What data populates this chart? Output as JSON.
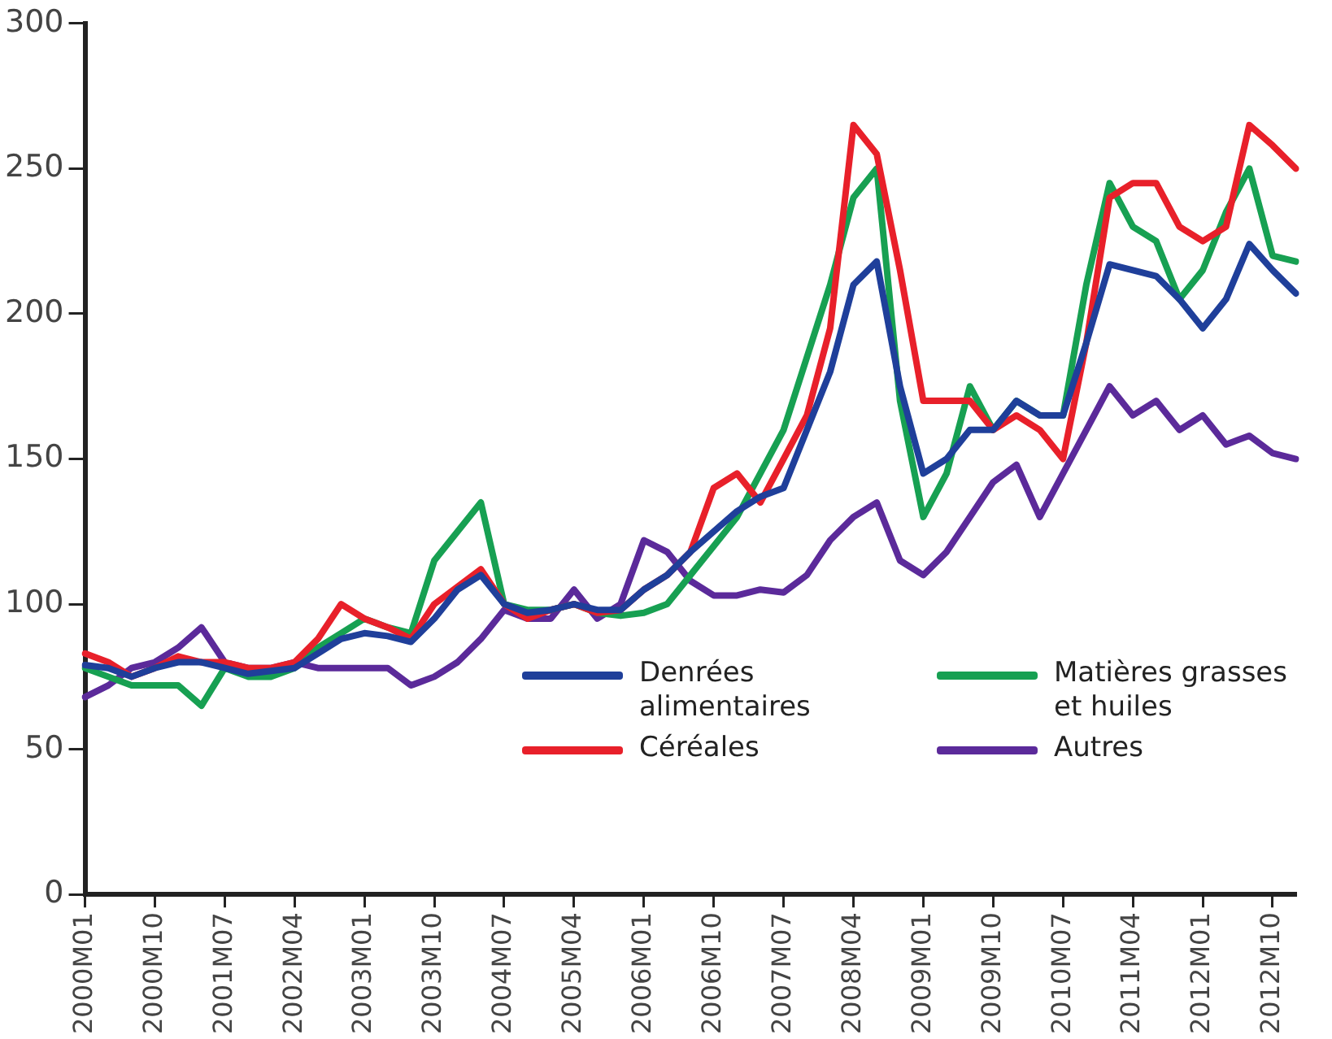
{
  "chart_data": {
    "type": "line",
    "categories": [
      "2000M01",
      null,
      null,
      "2000M10",
      null,
      null,
      "2001M07",
      null,
      null,
      "2002M04",
      null,
      null,
      "2003M01",
      null,
      null,
      "2003M10",
      null,
      null,
      "2004M07",
      null,
      null,
      "2005M04",
      null,
      null,
      "2006M01",
      null,
      null,
      "2006M10",
      null,
      null,
      "2007M07",
      null,
      null,
      "2008M04",
      null,
      null,
      "2009M01",
      null,
      null,
      "2009M10",
      null,
      null,
      "2010M07",
      null,
      null,
      "2011M04",
      null,
      null,
      "2012M01",
      null,
      null,
      "2012M10",
      null
    ],
    "series": [
      {
        "name": "Denrées alimentaires",
        "color": "#1f3f9a",
        "values": [
          79,
          78,
          75,
          78,
          80,
          80,
          78,
          76,
          77,
          78,
          83,
          88,
          90,
          89,
          87,
          95,
          105,
          110,
          100,
          97,
          98,
          100,
          98,
          98,
          105,
          110,
          118,
          125,
          132,
          137,
          140,
          160,
          180,
          210,
          218,
          175,
          145,
          150,
          160,
          160,
          170,
          165,
          165,
          190,
          217,
          215,
          213,
          205,
          195,
          205,
          224,
          215,
          207
        ]
      },
      {
        "name": "Céréales",
        "color": "#e8202a",
        "values": [
          83,
          80,
          75,
          78,
          82,
          80,
          80,
          78,
          78,
          80,
          88,
          100,
          95,
          92,
          88,
          100,
          106,
          112,
          100,
          95,
          98,
          100,
          97,
          98,
          105,
          110,
          118,
          140,
          145,
          135,
          150,
          165,
          195,
          265,
          255,
          215,
          170,
          170,
          170,
          160,
          165,
          160,
          150,
          190,
          240,
          245,
          245,
          230,
          225,
          230,
          265,
          258,
          250
        ]
      },
      {
        "name": "Matières grasses et huiles",
        "color": "#17a052",
        "values": [
          78,
          75,
          72,
          72,
          72,
          65,
          78,
          75,
          75,
          78,
          85,
          90,
          95,
          92,
          90,
          115,
          125,
          135,
          100,
          98,
          98,
          100,
          97,
          96,
          97,
          100,
          110,
          120,
          130,
          145,
          160,
          185,
          210,
          240,
          250,
          170,
          130,
          145,
          175,
          160,
          170,
          165,
          165,
          210,
          245,
          230,
          225,
          205,
          215,
          235,
          250,
          220,
          218
        ]
      },
      {
        "name": "Autres",
        "color": "#5b2a9a",
        "values": [
          68,
          72,
          78,
          80,
          85,
          92,
          80,
          78,
          78,
          80,
          78,
          78,
          78,
          78,
          72,
          75,
          80,
          88,
          98,
          95,
          95,
          105,
          95,
          100,
          122,
          118,
          108,
          103,
          103,
          105,
          104,
          110,
          122,
          130,
          135,
          115,
          110,
          118,
          130,
          142,
          148,
          130,
          145,
          160,
          175,
          165,
          170,
          160,
          165,
          155,
          158,
          152,
          150
        ]
      }
    ],
    "ylim": [
      0,
      300
    ],
    "yticks": [
      0,
      50,
      100,
      150,
      200,
      250,
      300
    ],
    "grid": false,
    "legend": "bottom right"
  }
}
